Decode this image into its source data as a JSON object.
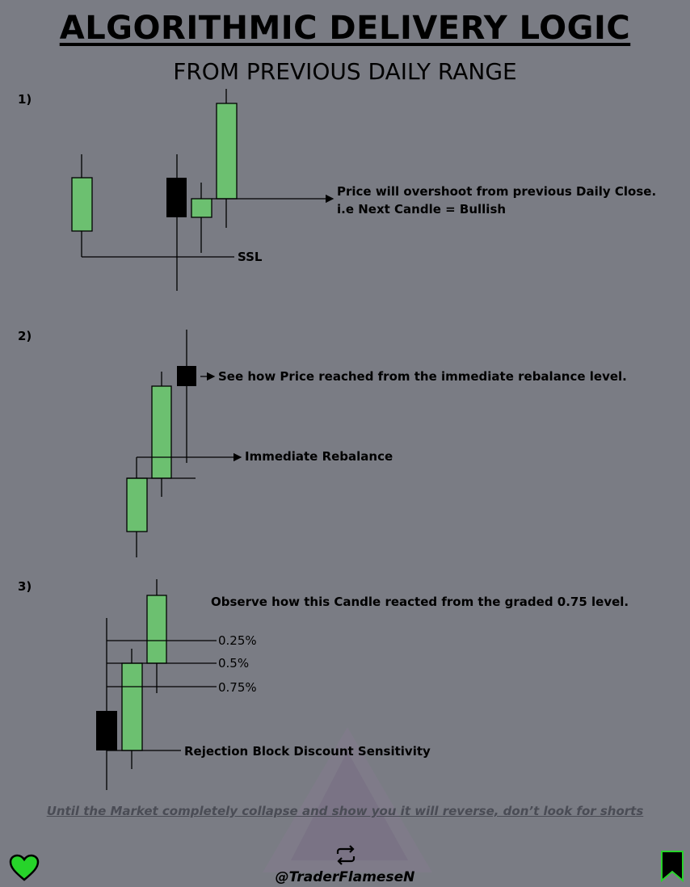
{
  "header": {
    "title": "ALGORITHMIC DELIVERY LOGIC",
    "subtitle": "FROM PREVIOUS DAILY RANGE"
  },
  "colors": {
    "bullish": "#6cc070",
    "bearish": "#000000",
    "background": "#7a7c84",
    "heart": "#27d42a"
  },
  "sections": [
    {
      "number": "1)",
      "labels": {
        "overshoot_line1": "Price will overshoot from previous Daily Close.",
        "overshoot_line2": "i.e Next Candle = Bullish",
        "ssl": "SSL"
      }
    },
    {
      "number": "2)",
      "labels": {
        "see_how": "See how Price reached from the immediate rebalance level.",
        "rebalance": "Immediate Rebalance"
      }
    },
    {
      "number": "3)",
      "labels": {
        "observe": "Observe how this Candle reacted from the graded 0.75 level.",
        "level_025": "0.25%",
        "level_05": "0.5%",
        "level_075": "0.75%",
        "rejection": "Rejection Block Discount Sensitivity"
      }
    }
  ],
  "footer": {
    "note": "Until the Market completely collapse and show you it will reverse, don’t look for shorts",
    "handle": "@TraderFlameseN",
    "icons": [
      "heart-icon",
      "repost-icon",
      "bookmark-icon"
    ]
  }
}
